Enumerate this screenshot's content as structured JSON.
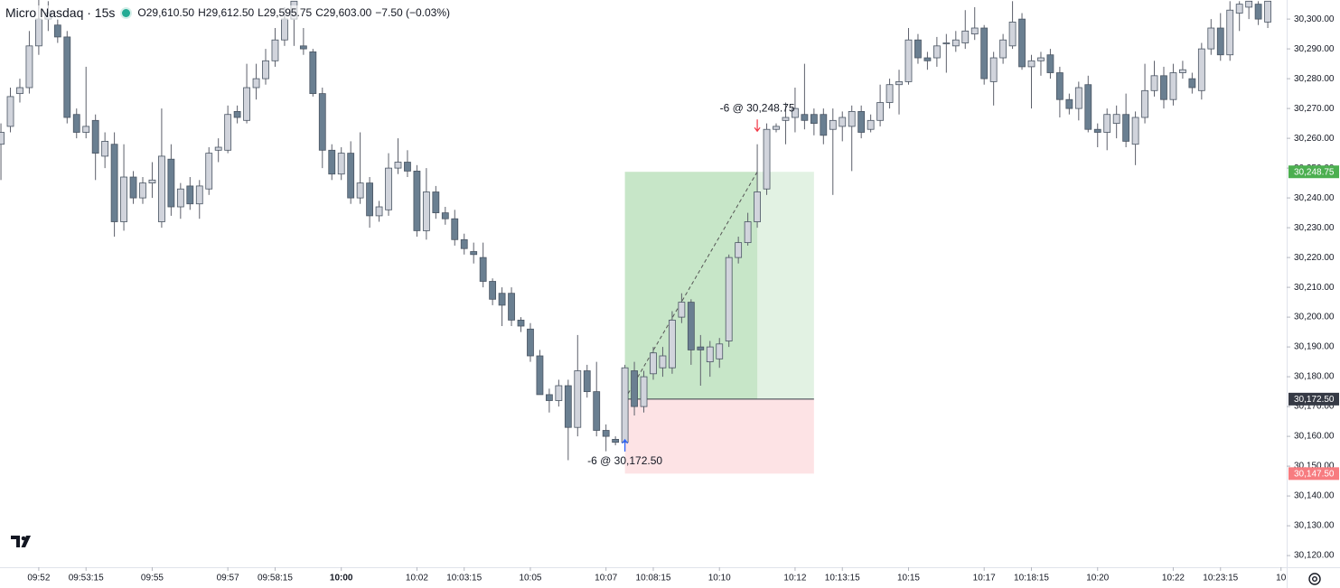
{
  "chart_data": {
    "type": "candlestick",
    "title": "Micro Nasdaq · 15s",
    "ohlc_readout": [
      "O29,610.50",
      "H29,612.50",
      "L29,595.75",
      "C29,603.00",
      "−7.50 (−0.03%)"
    ],
    "xlim": [
      -0.1,
      136
    ],
    "xticks": [
      {
        "value": 4,
        "label": "09:52"
      },
      {
        "value": 9,
        "label": "09:53:15"
      },
      {
        "value": 16,
        "label": "09:55"
      },
      {
        "value": 24,
        "label": "09:57"
      },
      {
        "value": 29,
        "label": "09:58:15"
      },
      {
        "value": 36,
        "label": "10:00"
      },
      {
        "value": 44,
        "label": "10:02"
      },
      {
        "value": 49,
        "label": "10:03:15"
      },
      {
        "value": 56,
        "label": "10:05"
      },
      {
        "value": 64,
        "label": "10:07"
      },
      {
        "value": 69,
        "label": "10:08:15"
      },
      {
        "value": 76,
        "label": "10:10"
      },
      {
        "value": 84,
        "label": "10:12"
      },
      {
        "value": 89,
        "label": "10:13:15"
      },
      {
        "value": 96,
        "label": "10:15"
      },
      {
        "value": 104,
        "label": "10:17"
      },
      {
        "value": 109,
        "label": "10:18:15"
      },
      {
        "value": 116,
        "label": "10:20"
      },
      {
        "value": 124,
        "label": "10:22"
      },
      {
        "value": 129,
        "label": "10:23:15"
      },
      {
        "value": 135.4,
        "label": "10"
      }
    ],
    "ylim": [
      30117,
      30306.4
    ],
    "yticks": [
      {
        "value": 30120,
        "label": "30,120.00"
      },
      {
        "value": 30130,
        "label": "30,130.00"
      },
      {
        "value": 30140,
        "label": "30,140.00"
      },
      {
        "value": 30150,
        "label": "30,150.00"
      },
      {
        "value": 30160,
        "label": "30,160.00"
      },
      {
        "value": 30170,
        "label": "30,170.00"
      },
      {
        "value": 30180,
        "label": "30,180.00"
      },
      {
        "value": 30190,
        "label": "30,190.00"
      },
      {
        "value": 30200,
        "label": "30,200.00"
      },
      {
        "value": 30210,
        "label": "30,210.00"
      },
      {
        "value": 30220,
        "label": "30,220.00"
      },
      {
        "value": 30230,
        "label": "30,230.00"
      },
      {
        "value": 30240,
        "label": "30,240.00"
      },
      {
        "value": 30250,
        "label": "30,250.00"
      },
      {
        "value": 30260,
        "label": "30,260.00"
      },
      {
        "value": 30270,
        "label": "30,270.00"
      },
      {
        "value": 30280,
        "label": "30,280.00"
      },
      {
        "value": 30290,
        "label": "30,290.00"
      },
      {
        "value": 30300,
        "label": "30,300.00"
      }
    ],
    "up_color": "#d1d4dc",
    "down_color": "#6a7f91",
    "candles": [
      [
        30258,
        30265,
        30246,
        30262
      ],
      [
        30264,
        30277,
        30262,
        30274
      ],
      [
        30275,
        30280,
        30272,
        30277
      ],
      [
        30277,
        30296,
        30275,
        30291
      ],
      [
        30291,
        30310,
        30288,
        30300
      ],
      [
        30300,
        30306,
        30296,
        30302
      ],
      [
        30298,
        30300,
        30292,
        30294
      ],
      [
        30294,
        30296,
        30265,
        30267
      ],
      [
        30268,
        30270,
        30260,
        30262
      ],
      [
        30262,
        30284,
        30260,
        30264
      ],
      [
        30266,
        30268,
        30246,
        30255
      ],
      [
        30254,
        30262,
        30250,
        30259
      ],
      [
        30258,
        30262,
        30227,
        30232
      ],
      [
        30232,
        30258,
        30229,
        30247
      ],
      [
        30247,
        30249,
        30238,
        30240
      ],
      [
        30240,
        30247,
        30238,
        30245
      ],
      [
        30245,
        30252,
        30240,
        30246
      ],
      [
        30232,
        30270,
        30230,
        30254
      ],
      [
        30253,
        30258,
        30234,
        30237
      ],
      [
        30237,
        30245,
        30233,
        30243
      ],
      [
        30244,
        30247,
        30236,
        30238
      ],
      [
        30238,
        30246,
        30233,
        30244
      ],
      [
        30243,
        30257,
        30241,
        30255
      ],
      [
        30256,
        30260,
        30252,
        30257
      ],
      [
        30256,
        30271,
        30255,
        30268
      ],
      [
        30269,
        30271,
        30265,
        30267
      ],
      [
        30266,
        30285,
        30265,
        30277
      ],
      [
        30277,
        30285,
        30273,
        30280
      ],
      [
        30280,
        30290,
        30278,
        30286
      ],
      [
        30286,
        30297,
        30284,
        30293
      ],
      [
        30293,
        30304,
        30291,
        30300
      ],
      [
        30300,
        30306,
        30291,
        30306
      ],
      [
        30291,
        30297,
        30288,
        30290
      ],
      [
        30289,
        30290,
        30274,
        30275
      ],
      [
        30275,
        30277,
        30250,
        30256
      ],
      [
        30256,
        30258,
        30246,
        30248
      ],
      [
        30248,
        30257,
        30246,
        30255
      ],
      [
        30255,
        30259,
        30238,
        30240
      ],
      [
        30240,
        30262,
        30238,
        30245
      ],
      [
        30245,
        30247,
        30230,
        30234
      ],
      [
        30234,
        30239,
        30232,
        30237
      ],
      [
        30236,
        30255,
        30234,
        30250
      ],
      [
        30250,
        30260,
        30248,
        30252
      ],
      [
        30252,
        30256,
        30247,
        30249
      ],
      [
        30249,
        30251,
        30227,
        30229
      ],
      [
        30229,
        30250,
        30226,
        30242
      ],
      [
        30242,
        30244,
        30233,
        30235
      ],
      [
        30235,
        30237,
        30231,
        30233
      ],
      [
        30233,
        30236,
        30224,
        30226
      ],
      [
        30226,
        30228,
        30221,
        30223
      ],
      [
        30222,
        30225,
        30218,
        30221
      ],
      [
        30220,
        30225,
        30210,
        30212
      ],
      [
        30212,
        30213,
        30204,
        30206
      ],
      [
        30208,
        30210,
        30197,
        30204
      ],
      [
        30208,
        30210,
        30197,
        30199
      ],
      [
        30199,
        30200,
        30195,
        30197
      ],
      [
        30196,
        30198,
        30185,
        30187
      ],
      [
        30187,
        30189,
        30174,
        30174
      ],
      [
        30174,
        30176,
        30168,
        30172
      ],
      [
        30172,
        30179,
        30170,
        30177
      ],
      [
        30177,
        30179,
        30152,
        30163
      ],
      [
        30163,
        30194,
        30160,
        30182
      ],
      [
        30182,
        30184,
        30173,
        30175
      ],
      [
        30175,
        30185,
        30160,
        30162
      ],
      [
        30162,
        30164,
        30155,
        30160
      ],
      [
        30159,
        30160,
        30157,
        30158
      ],
      [
        30158,
        30184,
        30155,
        30183
      ],
      [
        30182,
        30185,
        30167,
        30170
      ],
      [
        30170,
        30182,
        30168,
        30180
      ],
      [
        30181,
        30190,
        30179,
        30188
      ],
      [
        30183,
        30190,
        30180,
        30187
      ],
      [
        30183,
        30202,
        30181,
        30199
      ],
      [
        30200,
        30208,
        30198,
        30205
      ],
      [
        30205,
        30206,
        30184,
        30189
      ],
      [
        30190,
        30194,
        30177,
        30189
      ],
      [
        30185,
        30192,
        30180,
        30190
      ],
      [
        30186,
        30193,
        30183,
        30191
      ],
      [
        30192,
        30221,
        30190,
        30220
      ],
      [
        30220,
        30227,
        30218,
        30225
      ],
      [
        30225,
        30235,
        30224,
        30232
      ],
      [
        30232,
        30258,
        30230,
        30242
      ],
      [
        30243,
        30265,
        30241,
        30263
      ],
      [
        30263,
        30265,
        30262,
        30264
      ],
      [
        30266,
        30272,
        30258,
        30267
      ],
      [
        30267,
        30277,
        30262,
        30270
      ],
      [
        30268,
        30285,
        30263,
        30266
      ],
      [
        30268,
        30270,
        30261,
        30265
      ],
      [
        30268,
        30270,
        30258,
        30261
      ],
      [
        30263,
        30270,
        30241,
        30266
      ],
      [
        30264,
        30269,
        30259,
        30267
      ],
      [
        30264,
        30271,
        30249,
        30269
      ],
      [
        30269,
        30271,
        30260,
        30262
      ],
      [
        30263,
        30268,
        30262,
        30266
      ],
      [
        30266,
        30278,
        30264,
        30272
      ],
      [
        30272,
        30280,
        30270,
        30278
      ],
      [
        30278,
        30283,
        30268,
        30279
      ],
      [
        30279,
        30297,
        30278,
        30293
      ],
      [
        30293,
        30295,
        30285,
        30287
      ],
      [
        30287,
        30289,
        30283,
        30286
      ],
      [
        30287,
        30294,
        30284,
        30291
      ],
      [
        30292,
        30295,
        30282,
        30292
      ],
      [
        30291,
        30296,
        30289,
        30293
      ],
      [
        30292,
        30303,
        30290,
        30296
      ],
      [
        30295,
        30304,
        30293,
        30297
      ],
      [
        30297,
        30298,
        30278,
        30280
      ],
      [
        30279,
        30289,
        30271,
        30287
      ],
      [
        30287,
        30295,
        30285,
        30293
      ],
      [
        30291,
        30306,
        30290,
        30299
      ],
      [
        30300,
        30302,
        30283,
        30284
      ],
      [
        30284,
        30288,
        30270,
        30286
      ],
      [
        30286,
        30289,
        30281,
        30287
      ],
      [
        30288,
        30290,
        30280,
        30282
      ],
      [
        30282,
        30284,
        30267,
        30273
      ],
      [
        30273,
        30275,
        30268,
        30270
      ],
      [
        30270,
        30279,
        30266,
        30277
      ],
      [
        30278,
        30281,
        30262,
        30263
      ],
      [
        30263,
        30265,
        30257,
        30262
      ],
      [
        30262,
        30270,
        30256,
        30268
      ],
      [
        30265,
        30271,
        30260,
        30268
      ],
      [
        30268,
        30275,
        30257,
        30259
      ],
      [
        30258,
        30269,
        30251,
        30267
      ],
      [
        30267,
        30285,
        30265,
        30276
      ],
      [
        30276,
        30286,
        30274,
        30281
      ],
      [
        30281,
        30284,
        30270,
        30273
      ],
      [
        30273,
        30285,
        30271,
        30282
      ],
      [
        30282,
        30286,
        30280,
        30283
      ],
      [
        30280,
        30282,
        30275,
        30277
      ],
      [
        30276,
        30292,
        30273,
        30290
      ],
      [
        30290,
        30300,
        30288,
        30297
      ],
      [
        30297,
        30302,
        30286,
        30288
      ],
      [
        30288,
        30306,
        30286,
        30303
      ],
      [
        30302,
        30306,
        30296,
        30305
      ],
      [
        30304,
        30306,
        30300,
        30306
      ],
      [
        30305,
        30306,
        30298,
        30300
      ],
      [
        30299,
        30306,
        30297,
        30306
      ]
    ],
    "position": {
      "entry_index": 66,
      "exit_index": 80,
      "end_index": 86,
      "entry": 30172.5,
      "target": 30248.75,
      "stop": 30147.5
    },
    "price_tags": [
      {
        "value": 30248.75,
        "label": "30,248.75",
        "color": "#4caf50"
      },
      {
        "value": 30172.5,
        "label": "30,172.50",
        "color": "#363a45"
      },
      {
        "value": 30147.5,
        "label": "30,147.50",
        "color": "#f77c80"
      }
    ],
    "annotations": [
      {
        "text": "-6 @ 30,172.50",
        "index": 66,
        "value": 30172.5,
        "side": "buy"
      },
      {
        "text": "-6 @ 30,248.75",
        "index": 80,
        "value": 30248.75,
        "side": "sell"
      }
    ]
  }
}
